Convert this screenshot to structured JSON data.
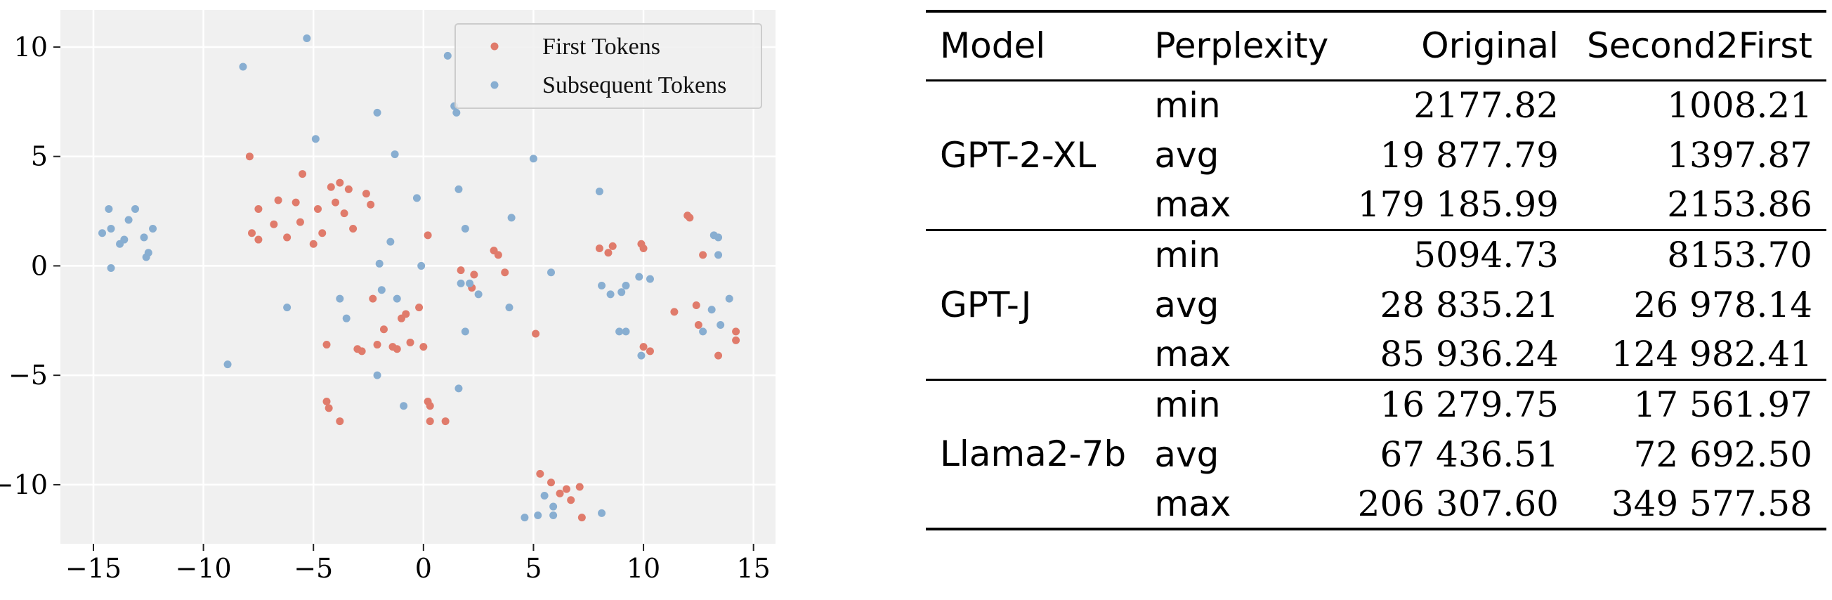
{
  "chart_data": [
    {
      "type": "scatter",
      "title": "",
      "xlabel": "",
      "ylabel": "",
      "xlim": [
        -16.5,
        16
      ],
      "ylim": [
        -12.7,
        11.7
      ],
      "x_ticks": [
        -15,
        -10,
        -5,
        0,
        5,
        10,
        15
      ],
      "x_tick_labels": [
        "−15",
        "−10",
        "−5",
        "0",
        "5",
        "10",
        "15"
      ],
      "y_ticks": [
        10,
        5,
        0,
        -5,
        -10
      ],
      "y_tick_labels": [
        "10",
        "5",
        "0",
        "−5",
        "−10"
      ],
      "grid": true,
      "background": "#f0f0f0",
      "legend_position": "top-right",
      "series": [
        {
          "name": "First Tokens",
          "color": "#e07b6b",
          "points": [
            [
              -7.9,
              5.0
            ],
            [
              -7.8,
              1.5
            ],
            [
              -7.5,
              2.6
            ],
            [
              -7.5,
              1.2
            ],
            [
              -6.8,
              1.9
            ],
            [
              -6.6,
              3.0
            ],
            [
              -6.2,
              1.3
            ],
            [
              -5.8,
              2.9
            ],
            [
              -5.6,
              2.0
            ],
            [
              -5.5,
              4.2
            ],
            [
              -5.0,
              1.0
            ],
            [
              -4.8,
              2.6
            ],
            [
              -4.6,
              1.5
            ],
            [
              -4.2,
              3.6
            ],
            [
              -4.0,
              2.9
            ],
            [
              -3.8,
              3.8
            ],
            [
              -3.6,
              2.4
            ],
            [
              -3.4,
              3.5
            ],
            [
              -3.2,
              1.7
            ],
            [
              -2.6,
              3.3
            ],
            [
              -2.4,
              2.8
            ],
            [
              -4.4,
              -3.6
            ],
            [
              -3.0,
              -3.8
            ],
            [
              -2.8,
              -3.9
            ],
            [
              -2.3,
              -1.5
            ],
            [
              -2.1,
              -3.6
            ],
            [
              -1.8,
              -2.9
            ],
            [
              -1.4,
              -3.7
            ],
            [
              -1.2,
              -3.8
            ],
            [
              -1.0,
              -2.4
            ],
            [
              -0.8,
              -2.2
            ],
            [
              -0.6,
              -3.5
            ],
            [
              -0.2,
              -1.9
            ],
            [
              0.0,
              -3.7
            ],
            [
              0.2,
              1.4
            ],
            [
              -4.4,
              -6.2
            ],
            [
              -4.3,
              -6.5
            ],
            [
              -3.8,
              -7.1
            ],
            [
              0.2,
              -6.2
            ],
            [
              0.3,
              -6.4
            ],
            [
              0.3,
              -7.1
            ],
            [
              1.0,
              -7.1
            ],
            [
              1.7,
              -0.2
            ],
            [
              2.3,
              -0.4
            ],
            [
              2.2,
              -1.0
            ],
            [
              3.2,
              0.7
            ],
            [
              3.4,
              0.5
            ],
            [
              3.7,
              -0.3
            ],
            [
              5.1,
              -3.1
            ],
            [
              5.3,
              -9.5
            ],
            [
              5.8,
              -9.9
            ],
            [
              6.2,
              -10.4
            ],
            [
              6.5,
              -10.2
            ],
            [
              6.7,
              -10.7
            ],
            [
              7.1,
              -10.1
            ],
            [
              7.2,
              -11.5
            ],
            [
              8.0,
              0.8
            ],
            [
              8.4,
              0.6
            ],
            [
              8.6,
              0.9
            ],
            [
              9.9,
              1.0
            ],
            [
              10.0,
              0.8
            ],
            [
              10.0,
              -3.7
            ],
            [
              10.3,
              -3.9
            ],
            [
              11.4,
              -2.1
            ],
            [
              12.0,
              2.3
            ],
            [
              12.1,
              2.2
            ],
            [
              12.4,
              -1.8
            ],
            [
              12.5,
              -2.7
            ],
            [
              12.7,
              0.5
            ],
            [
              13.4,
              -4.1
            ],
            [
              14.2,
              -3.0
            ],
            [
              14.2,
              -3.4
            ]
          ]
        },
        {
          "name": "Subsequent Tokens",
          "color": "#88aed1",
          "points": [
            [
              -14.6,
              1.5
            ],
            [
              -14.3,
              2.6
            ],
            [
              -14.2,
              1.7
            ],
            [
              -14.2,
              -0.1
            ],
            [
              -13.8,
              1.0
            ],
            [
              -13.6,
              1.2
            ],
            [
              -13.4,
              2.1
            ],
            [
              -13.1,
              2.6
            ],
            [
              -12.7,
              1.3
            ],
            [
              -12.6,
              0.4
            ],
            [
              -12.5,
              0.6
            ],
            [
              -12.3,
              1.7
            ],
            [
              -8.9,
              -4.5
            ],
            [
              -8.2,
              9.1
            ],
            [
              -6.2,
              -1.9
            ],
            [
              -5.3,
              10.4
            ],
            [
              -4.9,
              5.8
            ],
            [
              -3.8,
              -1.5
            ],
            [
              -3.5,
              -2.4
            ],
            [
              -2.1,
              7.0
            ],
            [
              -2.0,
              0.1
            ],
            [
              -2.1,
              -5.0
            ],
            [
              -1.9,
              -1.1
            ],
            [
              -1.5,
              1.1
            ],
            [
              -1.3,
              5.1
            ],
            [
              -1.2,
              -1.5
            ],
            [
              -0.9,
              -6.4
            ],
            [
              -0.3,
              3.1
            ],
            [
              -0.1,
              0.0
            ],
            [
              1.1,
              9.6
            ],
            [
              1.4,
              7.3
            ],
            [
              1.5,
              7.0
            ],
            [
              1.6,
              3.5
            ],
            [
              1.9,
              1.7
            ],
            [
              1.7,
              -0.8
            ],
            [
              2.1,
              -0.8
            ],
            [
              2.5,
              -1.3
            ],
            [
              3.9,
              -1.9
            ],
            [
              4.0,
              2.2
            ],
            [
              1.6,
              -5.6
            ],
            [
              1.9,
              -3.0
            ],
            [
              4.6,
              -11.5
            ],
            [
              5.2,
              -11.4
            ],
            [
              5.5,
              -10.5
            ],
            [
              5.9,
              -11.0
            ],
            [
              5.9,
              -11.4
            ],
            [
              5.8,
              -0.3
            ],
            [
              5.0,
              4.9
            ],
            [
              8.0,
              3.4
            ],
            [
              8.1,
              -0.9
            ],
            [
              8.5,
              -1.3
            ],
            [
              9.0,
              -1.2
            ],
            [
              9.2,
              -0.9
            ],
            [
              8.9,
              -3.0
            ],
            [
              9.2,
              -3.0
            ],
            [
              9.8,
              -0.5
            ],
            [
              9.9,
              -4.1
            ],
            [
              10.3,
              -0.6
            ],
            [
              12.7,
              -3.0
            ],
            [
              13.1,
              -2.0
            ],
            [
              13.2,
              1.4
            ],
            [
              13.4,
              1.3
            ],
            [
              13.4,
              0.5
            ],
            [
              13.5,
              -2.7
            ],
            [
              13.9,
              -1.5
            ],
            [
              8.1,
              -11.3
            ]
          ]
        }
      ]
    },
    {
      "type": "table",
      "columns": [
        "Model",
        "Perplexity",
        "Original",
        "Second2First"
      ],
      "groups": [
        {
          "model": "GPT-2-XL",
          "rows": [
            {
              "stat": "min",
              "original": "2177.82",
              "second2first": "1008.21"
            },
            {
              "stat": "avg",
              "original": "19 877.79",
              "second2first": "1397.87"
            },
            {
              "stat": "max",
              "original": "179 185.99",
              "second2first": "2153.86"
            }
          ]
        },
        {
          "model": "GPT-J",
          "rows": [
            {
              "stat": "min",
              "original": "5094.73",
              "second2first": "8153.70"
            },
            {
              "stat": "avg",
              "original": "28 835.21",
              "second2first": "26 978.14"
            },
            {
              "stat": "max",
              "original": "85 936.24",
              "second2first": "124 982.41"
            }
          ]
        },
        {
          "model": "Llama2-7b",
          "rows": [
            {
              "stat": "min",
              "original": "16 279.75",
              "second2first": "17 561.97"
            },
            {
              "stat": "avg",
              "original": "67 436.51",
              "second2first": "72 692.50"
            },
            {
              "stat": "max",
              "original": "206 307.60",
              "second2first": "349 577.58"
            }
          ]
        }
      ]
    }
  ]
}
